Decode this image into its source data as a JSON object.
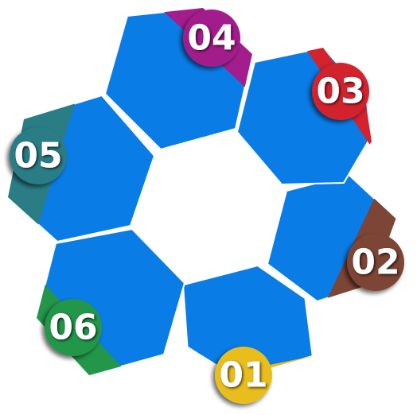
{
  "hex_color": "#0a7ce6",
  "segments": [
    {
      "id": "01",
      "label": "01",
      "color": "#e9bd1e"
    },
    {
      "id": "02",
      "label": "02",
      "color": "#7d4535"
    },
    {
      "id": "03",
      "label": "03",
      "color": "#d2232f"
    },
    {
      "id": "04",
      "label": "04",
      "color": "#a31e8c"
    },
    {
      "id": "05",
      "label": "05",
      "color": "#2a7d85"
    },
    {
      "id": "06",
      "label": "06",
      "color": "#23964a"
    }
  ]
}
